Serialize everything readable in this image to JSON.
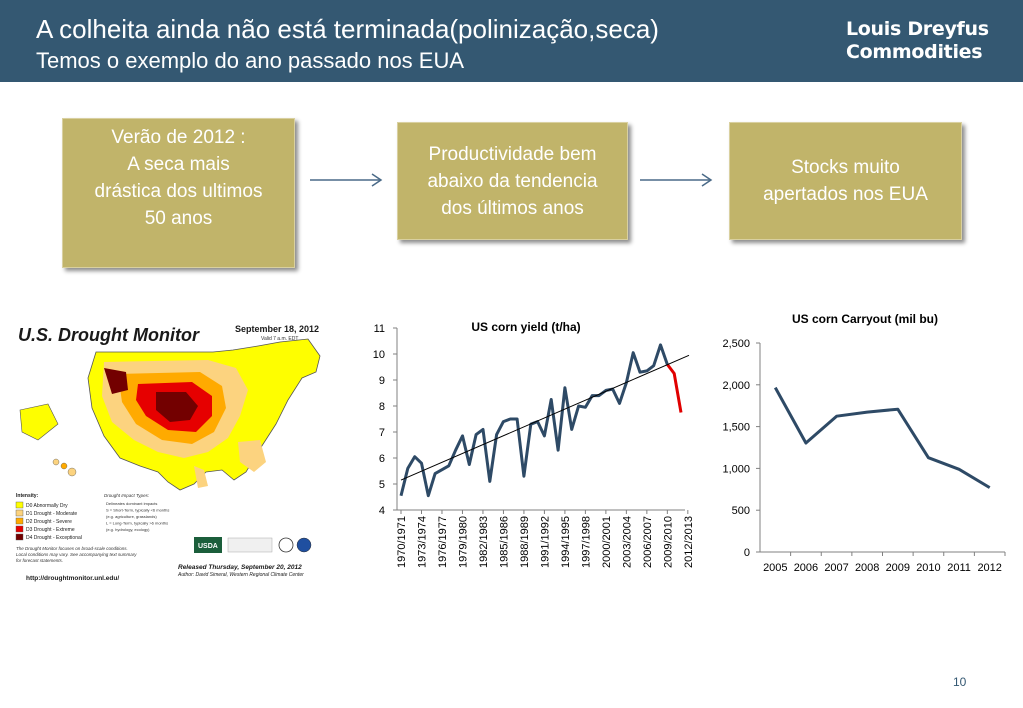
{
  "header": {
    "title_line1": "A colheita ainda não está terminada(polinização,seca)",
    "title_line2": "Temos o exemplo do ano passado nos EUA",
    "logo_line1": "Louis Dreyfus",
    "logo_line2": "Commodities"
  },
  "boxes": [
    {
      "lines": [
        "Verão de 2012 :",
        "A seca mais",
        "drástica dos ultimos",
        "50 anos"
      ]
    },
    {
      "lines": [
        "Productividade bem",
        "abaixo da tendencia",
        "dos últimos anos"
      ]
    },
    {
      "lines": [
        "Stocks muito",
        "apertados nos EUA"
      ]
    }
  ],
  "drought_map": {
    "title": "U.S. Drought Monitor",
    "date": "September 18, 2012",
    "valid": "Valid 7 a.m. EDT",
    "legend_title": "Intensity:",
    "legend": [
      {
        "label": "D0 Abnormally Dry",
        "color": "#fefe00"
      },
      {
        "label": "D1 Drought - Moderate",
        "color": "#fcd37f"
      },
      {
        "label": "D2 Drought - Severe",
        "color": "#ffaa00"
      },
      {
        "label": "D3 Drought - Extreme",
        "color": "#e60000"
      },
      {
        "label": "D4 Drought - Exceptional",
        "color": "#730000"
      }
    ],
    "impact_title": "Drought Impact Types:",
    "impact_lines": [
      "Delineates dominant impacts",
      "S = Short-Term, typically <6 months",
      "(e.g. agriculture, grasslands)",
      "L = Long-Term, typically >6 months",
      "(e.g. hydrology, ecology)"
    ],
    "note_lines": [
      "The Drought Monitor focuses on broad-scale conditions.",
      "Local conditions may vary. See accompanying text summary",
      "for forecast statements."
    ],
    "released": "Released Thursday, September 20, 2012",
    "author": "Author: David Simeral, Western Regional Climate Center",
    "url": "http://droughtmonitor.unl.edu/",
    "usda": "USDA"
  },
  "yield_chart": {
    "chart_data": {
      "type": "line",
      "title": "US corn yield (t/ha)",
      "ylim": [
        4,
        11
      ],
      "yticks": [
        "4",
        "5",
        "6",
        "7",
        "8",
        "9",
        "10",
        "11"
      ],
      "xtick_labels": [
        "1970/1971",
        "1973/1974",
        "1976/1977",
        "1979/1980",
        "1982/1983",
        "1985/1986",
        "1988/1989",
        "1991/1992",
        "1994/1995",
        "1997/1998",
        "2000/2001",
        "2003/2004",
        "2006/2007",
        "2009/2010",
        "2012/2013"
      ],
      "series": [
        {
          "values": [
            4.55,
            5.6,
            6.05,
            5.8,
            4.55,
            5.4,
            5.55,
            5.7,
            6.3,
            6.85,
            5.75,
            6.9,
            7.1,
            5.1,
            6.9,
            7.4,
            7.5,
            7.5,
            5.3,
            7.3,
            7.4,
            6.85,
            8.25,
            6.3,
            8.7,
            7.1,
            8.0,
            7.95,
            8.4,
            8.4,
            8.6,
            8.65,
            8.1,
            8.9,
            10.05,
            9.3,
            9.35,
            9.55,
            10.35,
            9.6
          ],
          "color": "#2e4a66"
        },
        {
          "values": [
            9.6,
            9.25,
            7.75
          ],
          "start_index": 39,
          "color": "#e00000"
        }
      ],
      "trend": {
        "start": 5.15,
        "end": 9.95,
        "color": "#000000"
      }
    }
  },
  "carry_chart": {
    "chart_data": {
      "type": "line",
      "title": "US corn Carryout (mil bu)",
      "categories": [
        "2005",
        "2006",
        "2007",
        "2008",
        "2009",
        "2010",
        "2011",
        "2012"
      ],
      "ylim": [
        0,
        2500
      ],
      "yticks": [
        "0",
        "500",
        "1,000",
        "1,500",
        "2,000",
        "2,500"
      ],
      "series": [
        {
          "values": [
            1967,
            1304,
            1624,
            1673,
            1708,
            1128,
            989,
            770
          ],
          "color": "#2e4a66"
        }
      ]
    }
  },
  "page_number": "10"
}
